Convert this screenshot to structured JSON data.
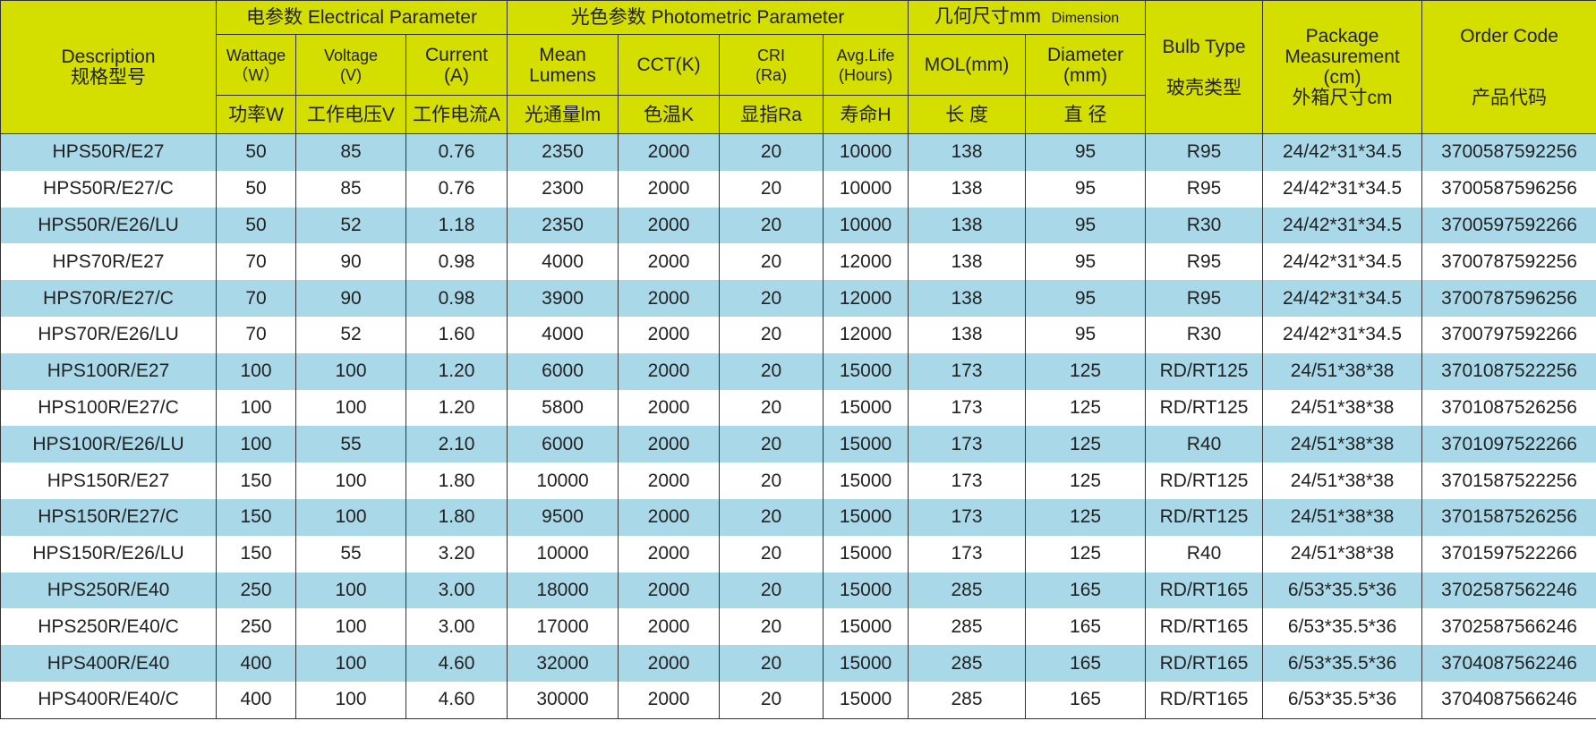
{
  "header": {
    "description": {
      "en": "Description",
      "zh": "规格型号"
    },
    "electrical_group": "电参数  Electrical Parameter",
    "photometric_group": "光色参数  Photometric Parameter",
    "dimension_group": {
      "zh": "几何尺寸mm",
      "en": "Dimension"
    },
    "wattage": {
      "en": "Wattage",
      "unit": "（W）",
      "zh": "功率W"
    },
    "voltage": {
      "en": "Voltage",
      "unit": "(V)",
      "zh": "工作电压V"
    },
    "current": {
      "en": "Current",
      "unit": "(A)",
      "zh": "工作电流A"
    },
    "lumens": {
      "en": "Mean",
      "en2": "Lumens",
      "zh": "光通量lm"
    },
    "cct": {
      "en": "CCT(K)",
      "zh": "色温K"
    },
    "cri": {
      "en": "CRI",
      "unit": "(Ra)",
      "zh": "显指Ra"
    },
    "life": {
      "en": "Avg.Life",
      "unit": "(Hours)",
      "zh": "寿命H"
    },
    "mol": {
      "en": "MOL(mm)",
      "zh": "长 度"
    },
    "diameter": {
      "en": "Diameter",
      "unit": "(mm)",
      "zh": "直 径"
    },
    "bulb": {
      "en": "Bulb Type",
      "zh": "玻壳类型"
    },
    "package": {
      "en": "Package",
      "en2": "Measurement",
      "unit": "(cm)",
      "zh": "外箱尺寸cm"
    },
    "order": {
      "en": "Order Code",
      "zh": "产品代码"
    }
  },
  "colors": {
    "header_bg": "#d4df00",
    "stripe_bg": "#a9d9e8"
  },
  "rows": [
    [
      "HPS50R/E27",
      "50",
      "85",
      "0.76",
      "2350",
      "2000",
      "20",
      "10000",
      "138",
      "95",
      "R95",
      "24/42*31*34.5",
      "3700587592256"
    ],
    [
      "HPS50R/E27/C",
      "50",
      "85",
      "0.76",
      "2300",
      "2000",
      "20",
      "10000",
      "138",
      "95",
      "R95",
      "24/42*31*34.5",
      "3700587596256"
    ],
    [
      "HPS50R/E26/LU",
      "50",
      "52",
      "1.18",
      "2350",
      "2000",
      "20",
      "10000",
      "138",
      "95",
      "R30",
      "24/42*31*34.5",
      "3700597592266"
    ],
    [
      "HPS70R/E27",
      "70",
      "90",
      "0.98",
      "4000",
      "2000",
      "20",
      "12000",
      "138",
      "95",
      "R95",
      "24/42*31*34.5",
      "3700787592256"
    ],
    [
      "HPS70R/E27/C",
      "70",
      "90",
      "0.98",
      "3900",
      "2000",
      "20",
      "12000",
      "138",
      "95",
      "R95",
      "24/42*31*34.5",
      "3700787596256"
    ],
    [
      "HPS70R/E26/LU",
      "70",
      "52",
      "1.60",
      "4000",
      "2000",
      "20",
      "12000",
      "138",
      "95",
      "R30",
      "24/42*31*34.5",
      "3700797592266"
    ],
    [
      "HPS100R/E27",
      "100",
      "100",
      "1.20",
      "6000",
      "2000",
      "20",
      "15000",
      "173",
      "125",
      "RD/RT125",
      "24/51*38*38",
      "3701087522256"
    ],
    [
      "HPS100R/E27/C",
      "100",
      "100",
      "1.20",
      "5800",
      "2000",
      "20",
      "15000",
      "173",
      "125",
      "RD/RT125",
      "24/51*38*38",
      "3701087526256"
    ],
    [
      "HPS100R/E26/LU",
      "100",
      "55",
      "2.10",
      "6000",
      "2000",
      "20",
      "15000",
      "173",
      "125",
      "R40",
      "24/51*38*38",
      "3701097522266"
    ],
    [
      "HPS150R/E27",
      "150",
      "100",
      "1.80",
      "10000",
      "2000",
      "20",
      "15000",
      "173",
      "125",
      "RD/RT125",
      "24/51*38*38",
      "3701587522256"
    ],
    [
      "HPS150R/E27/C",
      "150",
      "100",
      "1.80",
      "9500",
      "2000",
      "20",
      "15000",
      "173",
      "125",
      "RD/RT125",
      "24/51*38*38",
      "3701587526256"
    ],
    [
      "HPS150R/E26/LU",
      "150",
      "55",
      "3.20",
      "10000",
      "2000",
      "20",
      "15000",
      "173",
      "125",
      "R40",
      "24/51*38*38",
      "3701597522266"
    ],
    [
      "HPS250R/E40",
      "250",
      "100",
      "3.00",
      "18000",
      "2000",
      "20",
      "15000",
      "285",
      "165",
      "RD/RT165",
      "6/53*35.5*36",
      "3702587562246"
    ],
    [
      "HPS250R/E40/C",
      "250",
      "100",
      "3.00",
      "17000",
      "2000",
      "20",
      "15000",
      "285",
      "165",
      "RD/RT165",
      "6/53*35.5*36",
      "3702587566246"
    ],
    [
      "HPS400R/E40",
      "400",
      "100",
      "4.60",
      "32000",
      "2000",
      "20",
      "15000",
      "285",
      "165",
      "RD/RT165",
      "6/53*35.5*36",
      "3704087562246"
    ],
    [
      "HPS400R/E40/C",
      "400",
      "100",
      "4.60",
      "30000",
      "2000",
      "20",
      "15000",
      "285",
      "165",
      "RD/RT165",
      "6/53*35.5*36",
      "3704087566246"
    ]
  ]
}
